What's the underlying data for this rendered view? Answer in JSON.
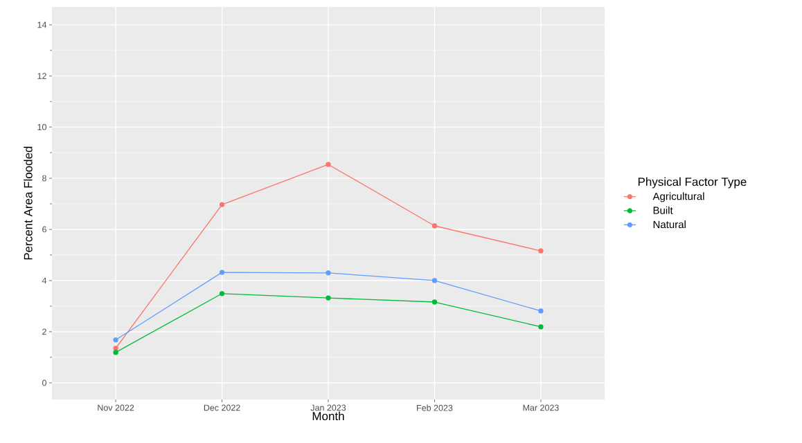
{
  "chart_data": {
    "type": "line",
    "xlabel": "Month",
    "ylabel": "Percent Area Flooded",
    "legend_title": "Physical Factor Type",
    "categories": [
      "Nov 2022",
      "Dec 2022",
      "Jan 2023",
      "Feb 2023",
      "Mar 2023"
    ],
    "series": [
      {
        "name": "Agricultural",
        "color": "#f8766d",
        "values": [
          1.35,
          6.97,
          8.54,
          6.14,
          5.16
        ]
      },
      {
        "name": "Built",
        "color": "#00ba38",
        "values": [
          1.19,
          3.49,
          3.32,
          3.16,
          2.19
        ]
      },
      {
        "name": "Natural",
        "color": "#619cff",
        "values": [
          1.68,
          4.32,
          4.3,
          4.0,
          2.81
        ]
      }
    ],
    "ylim": [
      -0.65,
      14.7
    ],
    "yticks": [
      0,
      2,
      4,
      6,
      8,
      10,
      12,
      14
    ],
    "grid": true,
    "legend": "right",
    "marker": "circle",
    "line_style": "solid"
  }
}
